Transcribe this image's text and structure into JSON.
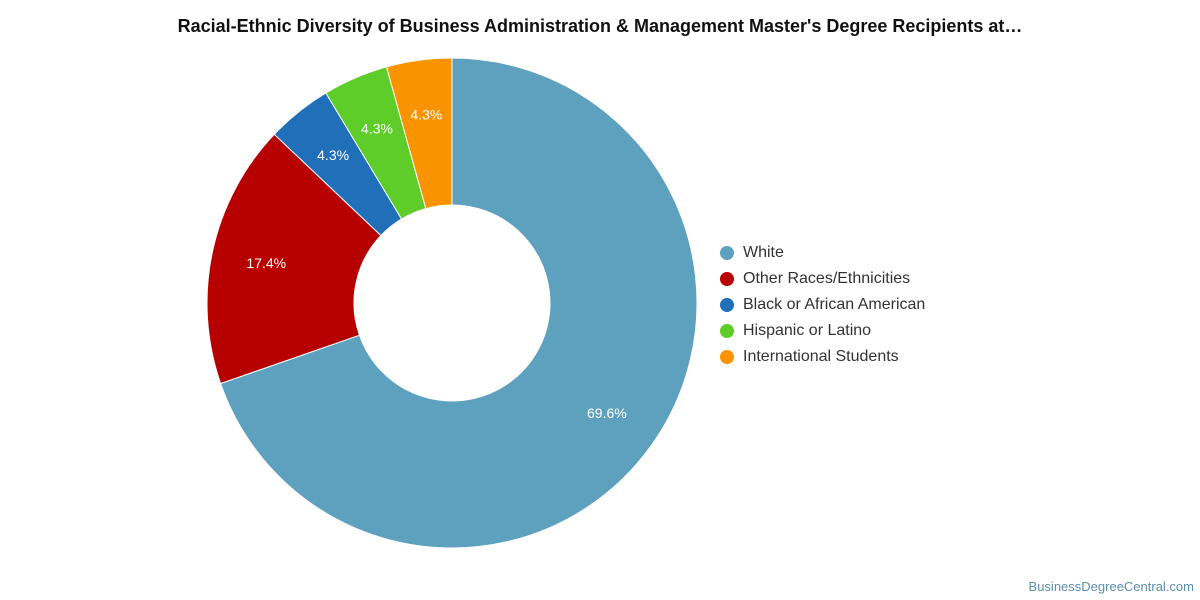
{
  "chart_data": {
    "type": "pie",
    "title": "Racial-Ethnic Diversity of Business Administration & Management Master's Degree Recipients at…",
    "donut": true,
    "categories": [
      "White",
      "Other Races/Ethnicities",
      "Black or African American",
      "Hispanic or Latino",
      "International Students"
    ],
    "values": [
      69.6,
      17.4,
      4.3,
      4.3,
      4.3
    ],
    "data_labels": [
      "69.6%",
      "17.4%",
      "4.3%",
      "4.3%",
      "4.3%"
    ],
    "colors": [
      "#5da1bf",
      "#b70000",
      "#1f70b8",
      "#5ecd2a",
      "#f99400"
    ],
    "legend_position": "right",
    "start_angle_deg": 0,
    "direction": "clockwise"
  },
  "footer": {
    "source": "BusinessDegreeCentral.com"
  }
}
